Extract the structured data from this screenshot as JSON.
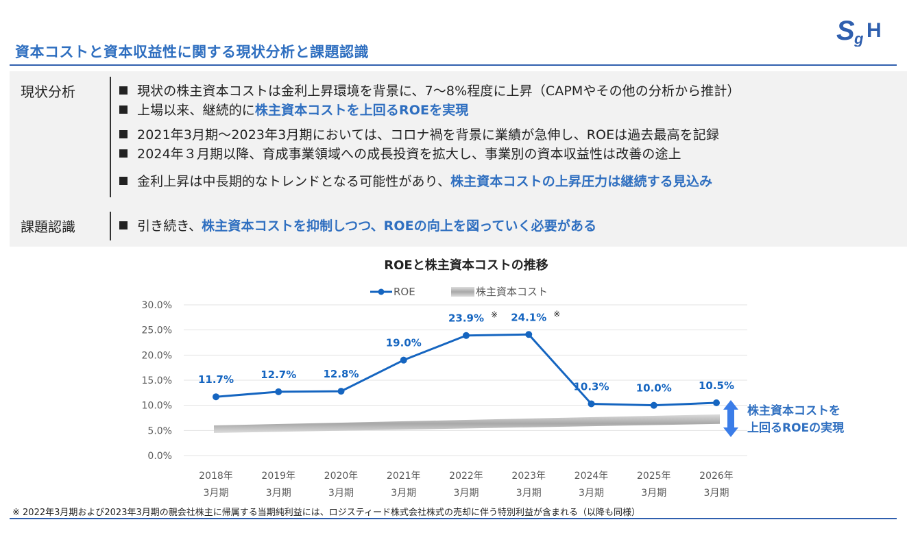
{
  "page": {
    "title": "資本コストと資本収益性に関する現状分析と課題認識",
    "footnote": "※ 2022年3月期および2023年3月期の親会社株主に帰属する当期純利益には、ロジスティード株式会社株式の売却に伴う特別利益が含まれる（以降も同様）"
  },
  "logo": {
    "text": "SgH",
    "color": "#2f5fae"
  },
  "analysis": {
    "label": "現状分析",
    "b1": "現状の株主資本コストは金利上昇環境を背景に、7～8%程度に上昇（CAPMやその他の分析から推計）",
    "b2_pre": "上場以来、継続的に",
    "b2_hl": "株主資本コストを上回るROEを実現",
    "b3": "2021年3月期～2023年3月期においては、コロナ禍を背景に業績が急伸し、ROEは過去最高を記録",
    "b4": "2024年３月期以降、育成事業領域への成長投資を拡大し、事業別の資本収益性は改善の途上",
    "b5_pre": "金利上昇は中長期的なトレンドとなる可能性があり、",
    "b5_hl": "株主資本コストの上昇圧力は継続する見込み"
  },
  "issues": {
    "label": "課題認識",
    "b1_pre": "引き続き、",
    "b1_hl": "株主資本コストを抑制しつつ、ROEの向上を図っていく必要がある"
  },
  "chart_data": {
    "type": "line",
    "title": "ROEと株主資本コストの推移",
    "categories": [
      [
        "2018年",
        "3月期"
      ],
      [
        "2019年",
        "3月期"
      ],
      [
        "2020年",
        "3月期"
      ],
      [
        "2021年",
        "3月期"
      ],
      [
        "2022年",
        "3月期"
      ],
      [
        "2023年",
        "3月期"
      ],
      [
        "2024年",
        "3月期"
      ],
      [
        "2025年",
        "3月期"
      ],
      [
        "2026年",
        "3月期"
      ]
    ],
    "series": [
      {
        "name": "ROE",
        "values": [
          11.7,
          12.7,
          12.8,
          19.0,
          23.9,
          24.1,
          10.3,
          10.0,
          10.5
        ],
        "labels": [
          "11.7%",
          "12.7%",
          "12.8%",
          "19.0%",
          "23.9%",
          "24.1%",
          "10.3%",
          "10.0%",
          "10.5%"
        ],
        "marks": [
          "",
          "",
          "",
          "",
          "※",
          "※",
          "",
          "",
          ""
        ],
        "color": "#1565c0"
      },
      {
        "name": "株主資本コスト",
        "band_start": [
          4.5,
          6.0
        ],
        "band_end": [
          6.3,
          8.2
        ],
        "color": "#b0b0b0"
      }
    ],
    "ylim": [
      0,
      30
    ],
    "yticks": [
      "0.0%",
      "5.0%",
      "10.0%",
      "15.0%",
      "20.0%",
      "25.0%",
      "30.0%"
    ],
    "ytick_values": [
      0,
      5,
      10,
      15,
      20,
      25,
      30
    ],
    "grid": true,
    "legend": "top-center",
    "annotation": {
      "line1": "株主資本コストを",
      "line2": "上回るROEの実現",
      "color": "#2f6fc0"
    }
  }
}
